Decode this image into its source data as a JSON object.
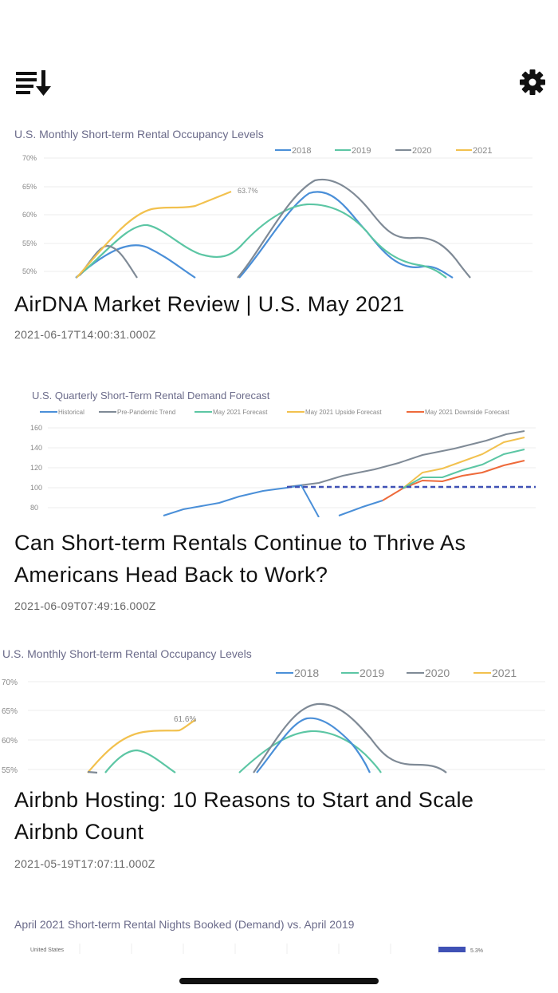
{
  "toolbar": {
    "sort_icon": "sort-list-down-icon",
    "settings_icon": "gear-icon"
  },
  "articles": [
    {
      "title": "AirDNA Market Review | U.S. May 2021",
      "date": "2021-06-17T14:00:31.000Z",
      "thumbnail": {
        "chart_title": "U.S. Monthly Short-term Rental Occupancy Levels",
        "legend": [
          "2018",
          "2019",
          "2020",
          "2021"
        ],
        "y_ticks": [
          "70%",
          "65%",
          "60%",
          "55%",
          "50%"
        ],
        "annotation": "63.7%"
      }
    },
    {
      "title": "Can Short-term Rentals Continue to Thrive As Americans Head Back to Work?",
      "date": "2021-06-09T07:49:16.000Z",
      "thumbnail": {
        "chart_title": "U.S. Quarterly Short-Term Rental Demand Forecast",
        "legend": [
          "Historical",
          "Pre-Pandemic Trend",
          "May 2021 Forecast",
          "May 2021 Upside Forecast",
          "May 2021 Downside Forecast"
        ],
        "y_ticks": [
          "160",
          "140",
          "120",
          "100",
          "80"
        ]
      }
    },
    {
      "title": "Airbnb Hosting: 10 Reasons to Start and Scale Airbnb Count",
      "date": "2021-05-19T17:07:11.000Z",
      "thumbnail": {
        "chart_title": "U.S. Monthly Short-term Rental Occupancy Levels",
        "legend": [
          "2018",
          "2019",
          "2020",
          "2021"
        ],
        "y_ticks": [
          "70%",
          "65%",
          "60%",
          "55%"
        ],
        "annotation": "61.6%"
      }
    },
    {
      "thumbnail": {
        "chart_title": "April 2021 Short-term Rental Nights Booked (Demand) vs. April 2019",
        "row_label": "United States",
        "bar_value": "5.3%"
      }
    }
  ],
  "colors": {
    "y2018": "#4a8fd8",
    "y2019": "#5cc6a4",
    "y2020": "#7f8a96",
    "y2021": "#f2c14e",
    "historical": "#4a8fd8",
    "pre_pandemic": "#7f8a96",
    "forecast": "#5cc6a4",
    "upside": "#f2c14e",
    "downside": "#ee6a3a",
    "trend_dashed": "#3f51b5",
    "bar": "#3f51b5"
  }
}
